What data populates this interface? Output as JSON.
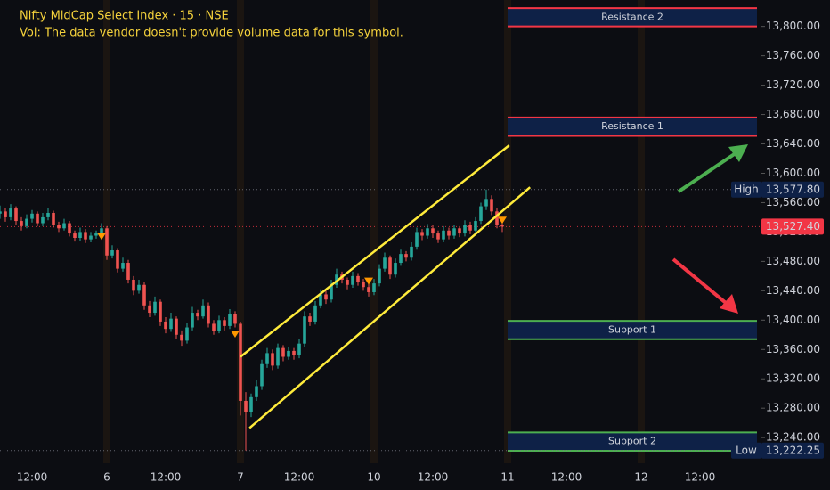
{
  "chart_data": {
    "type": "candlestick",
    "title": "Nifty MidCap Select Index · 15 · NSE",
    "subtitle": "Vol: The data vendor doesn't provide volume data for this symbol.",
    "up_color": "#26a69a",
    "down_color": "#ef5350",
    "xlim": [
      -20,
      122.5
    ],
    "ylim": [
      13205,
      13836
    ],
    "xticks": [
      {
        "value": -14,
        "label": "12:00"
      },
      {
        "value": 0,
        "label": "6"
      },
      {
        "value": 11,
        "label": "12:00"
      },
      {
        "value": 25,
        "label": "7"
      },
      {
        "value": 36,
        "label": "12:00"
      },
      {
        "value": 50,
        "label": "10"
      },
      {
        "value": 61,
        "label": "12:00"
      },
      {
        "value": 75,
        "label": "11"
      },
      {
        "value": 86,
        "label": "12:00"
      },
      {
        "value": 100,
        "label": "12"
      },
      {
        "value": 111,
        "label": "12:00"
      }
    ],
    "yticks": [
      {
        "value": 13240,
        "label": "13,240.00"
      },
      {
        "value": 13280,
        "label": "13,280.00"
      },
      {
        "value": 13320,
        "label": "13,320.00"
      },
      {
        "value": 13360,
        "label": "13,360.00"
      },
      {
        "value": 13400,
        "label": "13,400.00"
      },
      {
        "value": 13440,
        "label": "13,440.00"
      },
      {
        "value": 13480,
        "label": "13,480.00"
      },
      {
        "value": 13520,
        "label": "13,520.00"
      },
      {
        "value": 13560,
        "label": "13,560.00"
      },
      {
        "value": 13600,
        "label": "13,600.00"
      },
      {
        "value": 13640,
        "label": "13,640.00"
      },
      {
        "value": 13680,
        "label": "13,680.00"
      },
      {
        "value": 13720,
        "label": "13,720.00"
      },
      {
        "value": 13760,
        "label": "13,760.00"
      },
      {
        "value": 13800,
        "label": "13,800.00"
      }
    ],
    "candles": [
      [
        13545,
        13556,
        13538,
        13548
      ],
      [
        13548,
        13552,
        13534,
        13540
      ],
      [
        13540,
        13558,
        13536,
        13552
      ],
      [
        13552,
        13555,
        13530,
        13535
      ],
      [
        13535,
        13540,
        13522,
        13528
      ],
      [
        13528,
        13544,
        13525,
        13538
      ],
      [
        13538,
        13550,
        13533,
        13545
      ],
      [
        13545,
        13548,
        13528,
        13532
      ],
      [
        13532,
        13546,
        13528,
        13540
      ],
      [
        13540,
        13552,
        13536,
        13546
      ],
      [
        13546,
        13549,
        13526,
        13530
      ],
      [
        13530,
        13534,
        13520,
        13525
      ],
      [
        13525,
        13538,
        13522,
        13532
      ],
      [
        13532,
        13535,
        13514,
        13518
      ],
      [
        13518,
        13522,
        13507,
        13512
      ],
      [
        13512,
        13526,
        13508,
        13520
      ],
      [
        13520,
        13524,
        13505,
        13510
      ],
      [
        13510,
        13520,
        13506,
        13515
      ],
      [
        13515,
        13522,
        13511,
        13518
      ],
      [
        13518,
        13532,
        13514,
        13525
      ],
      [
        13525,
        13528,
        13482,
        13488
      ],
      [
        13488,
        13502,
        13484,
        13495
      ],
      [
        13495,
        13498,
        13465,
        13470
      ],
      [
        13470,
        13485,
        13466,
        13478
      ],
      [
        13478,
        13482,
        13450,
        13455
      ],
      [
        13455,
        13460,
        13434,
        13440
      ],
      [
        13440,
        13455,
        13436,
        13448
      ],
      [
        13448,
        13452,
        13414,
        13420
      ],
      [
        13420,
        13426,
        13404,
        13410
      ],
      [
        13410,
        13432,
        13406,
        13425
      ],
      [
        13425,
        13428,
        13392,
        13398
      ],
      [
        13398,
        13404,
        13382,
        13388
      ],
      [
        13388,
        13410,
        13384,
        13402
      ],
      [
        13402,
        13405,
        13374,
        13380
      ],
      [
        13380,
        13386,
        13365,
        13372
      ],
      [
        13372,
        13396,
        13368,
        13390
      ],
      [
        13390,
        13418,
        13386,
        13410
      ],
      [
        13410,
        13414,
        13400,
        13405
      ],
      [
        13405,
        13428,
        13402,
        13420
      ],
      [
        13420,
        13424,
        13390,
        13395
      ],
      [
        13395,
        13400,
        13380,
        13385
      ],
      [
        13385,
        13406,
        13382,
        13400
      ],
      [
        13400,
        13404,
        13386,
        13392
      ],
      [
        13392,
        13415,
        13388,
        13408
      ],
      [
        13408,
        13412,
        13390,
        13395
      ],
      [
        13395,
        13398,
        13270,
        13290
      ],
      [
        13290,
        13302,
        13222.25,
        13275
      ],
      [
        13275,
        13300,
        13268,
        13295
      ],
      [
        13295,
        13318,
        13290,
        13310
      ],
      [
        13310,
        13346,
        13305,
        13340
      ],
      [
        13340,
        13362,
        13335,
        13355
      ],
      [
        13355,
        13360,
        13332,
        13338
      ],
      [
        13338,
        13368,
        13334,
        13362
      ],
      [
        13362,
        13366,
        13344,
        13350
      ],
      [
        13350,
        13364,
        13346,
        13358
      ],
      [
        13358,
        13362,
        13346,
        13352
      ],
      [
        13352,
        13374,
        13348,
        13368
      ],
      [
        13368,
        13412,
        13364,
        13405
      ],
      [
        13405,
        13410,
        13392,
        13398
      ],
      [
        13398,
        13426,
        13394,
        13420
      ],
      [
        13420,
        13442,
        13416,
        13435
      ],
      [
        13435,
        13440,
        13422,
        13428
      ],
      [
        13428,
        13455,
        13424,
        13448
      ],
      [
        13448,
        13470,
        13444,
        13462
      ],
      [
        13462,
        13466,
        13450,
        13455
      ],
      [
        13455,
        13458,
        13442,
        13448
      ],
      [
        13448,
        13466,
        13444,
        13460
      ],
      [
        13460,
        13464,
        13447,
        13452
      ],
      [
        13452,
        13456,
        13440,
        13445
      ],
      [
        13445,
        13450,
        13432,
        13438
      ],
      [
        13438,
        13456,
        13434,
        13450
      ],
      [
        13450,
        13476,
        13446,
        13470
      ],
      [
        13470,
        13492,
        13466,
        13485
      ],
      [
        13485,
        13488,
        13456,
        13462
      ],
      [
        13462,
        13484,
        13458,
        13478
      ],
      [
        13478,
        13496,
        13474,
        13490
      ],
      [
        13490,
        13494,
        13480,
        13485
      ],
      [
        13485,
        13506,
        13481,
        13500
      ],
      [
        13500,
        13526,
        13496,
        13520
      ],
      [
        13520,
        13524,
        13509,
        13515
      ],
      [
        13515,
        13531,
        13511,
        13525
      ],
      [
        13525,
        13529,
        13512,
        13518
      ],
      [
        13518,
        13522,
        13505,
        13510
      ],
      [
        13510,
        13528,
        13506,
        13522
      ],
      [
        13522,
        13526,
        13510,
        13515
      ],
      [
        13515,
        13530,
        13511,
        13525
      ],
      [
        13525,
        13528,
        13513,
        13518
      ],
      [
        13518,
        13536,
        13514,
        13530
      ],
      [
        13530,
        13534,
        13517,
        13522
      ],
      [
        13522,
        13540,
        13518,
        13535
      ],
      [
        13535,
        13560,
        13531,
        13555
      ],
      [
        13555,
        13577.8,
        13550,
        13565
      ],
      [
        13565,
        13570,
        13543,
        13548
      ],
      [
        13548,
        13552,
        13525,
        13530
      ],
      [
        13530,
        13534,
        13520,
        13527.4
      ]
    ],
    "zones": [
      {
        "label": "Resistance 2",
        "top": 13825,
        "bottom": 13800,
        "color": "#f23645"
      },
      {
        "label": "Resistance 1",
        "top": 13676,
        "bottom": 13651,
        "color": "#f23645"
      },
      {
        "label": "Support 1",
        "top": 13399,
        "bottom": 13374,
        "color": "#4caf50"
      },
      {
        "label": "Support 2",
        "top": 13247,
        "bottom": 13222,
        "color": "#4caf50"
      }
    ],
    "trend_lines": [
      {
        "x": [
          25,
          75.3
        ],
        "y": [
          13350,
          13638
        ],
        "color": "#ffeb3b"
      },
      {
        "x": [
          26.7,
          79.2
        ],
        "y": [
          13253,
          13581
        ],
        "color": "#ffeb3b"
      }
    ],
    "markers": [
      {
        "x": -1,
        "y": 13514
      },
      {
        "x": 24,
        "y": 13381
      },
      {
        "x": 49,
        "y": 13453
      },
      {
        "x": 74,
        "y": 13536
      }
    ],
    "marker_color": "#ff9800",
    "last_price": {
      "value": 13527.4,
      "label": "13,527.40",
      "color": "#f23645"
    },
    "high": {
      "name": "High",
      "value": 13577.8,
      "label": "13,577.80"
    },
    "low": {
      "name": "Low",
      "value": 13222.25,
      "label": "13,222.25"
    }
  }
}
